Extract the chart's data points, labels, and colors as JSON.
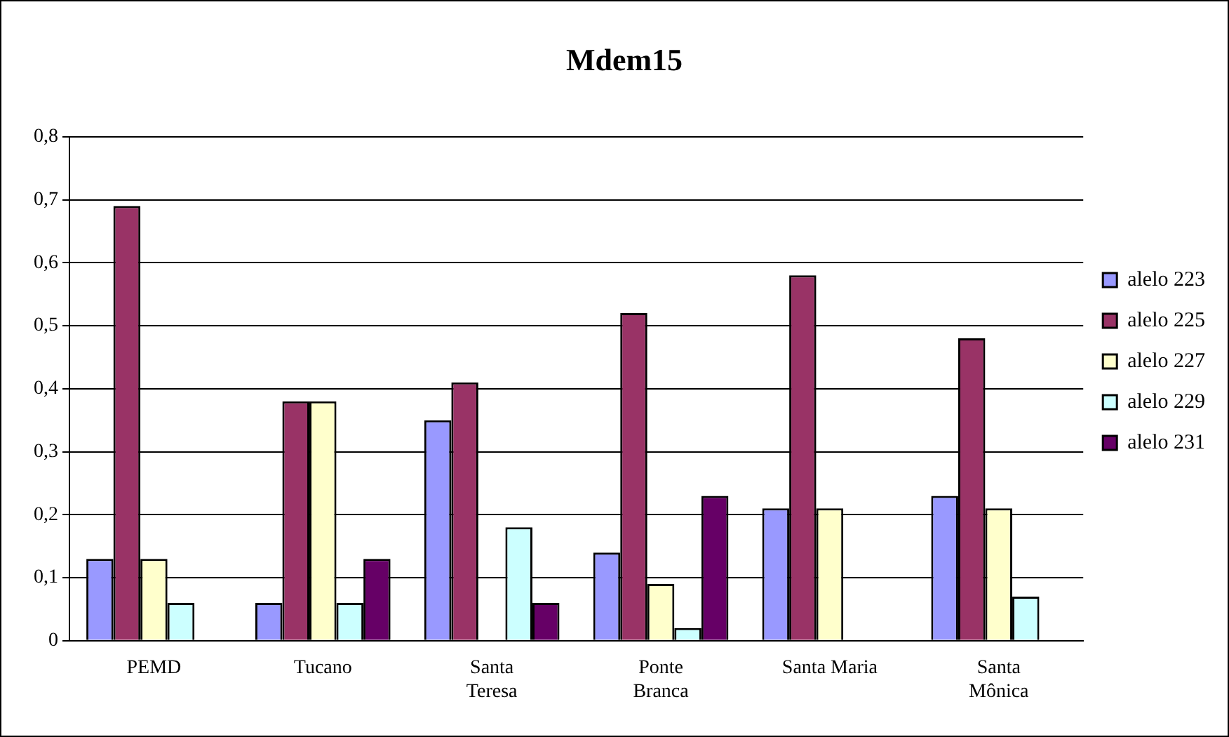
{
  "chart_data": {
    "type": "bar",
    "title": "Mdem15",
    "categories": [
      "PEMD",
      "Tucano",
      "Santa Teresa",
      "Ponte Branca",
      "Santa Maria",
      "Santa Mônica"
    ],
    "series": [
      {
        "name": "alelo 223",
        "color": "#9999ff",
        "values": [
          0.13,
          0.06,
          0.35,
          0.14,
          0.21,
          0.23
        ]
      },
      {
        "name": "alelo 225",
        "color": "#993366",
        "values": [
          0.69,
          0.38,
          0.41,
          0.52,
          0.58,
          0.48
        ]
      },
      {
        "name": "alelo 227",
        "color": "#ffffcc",
        "values": [
          0.13,
          0.38,
          null,
          0.09,
          0.21,
          0.21
        ]
      },
      {
        "name": "alelo 229",
        "color": "#ccffff",
        "values": [
          0.06,
          0.06,
          0.18,
          0.02,
          null,
          0.07
        ]
      },
      {
        "name": "alelo 231",
        "color": "#660066",
        "values": [
          null,
          0.13,
          0.06,
          0.23,
          null,
          null
        ]
      }
    ],
    "ylim": [
      0,
      0.8
    ],
    "yticks": [
      0,
      {
        "value": 0.1,
        "label": "0,1"
      },
      {
        "value": 0.2,
        "label": "0,2"
      },
      {
        "value": 0.3,
        "label": "0,3"
      },
      {
        "value": 0.4,
        "label": "0,4"
      },
      {
        "value": 0.5,
        "label": "0,5"
      },
      {
        "value": 0.6,
        "label": "0,6"
      },
      {
        "value": 0.7,
        "label": "0,7"
      },
      {
        "value": 0.8,
        "label": "0,8"
      }
    ],
    "grid": "y",
    "legend": "right"
  }
}
